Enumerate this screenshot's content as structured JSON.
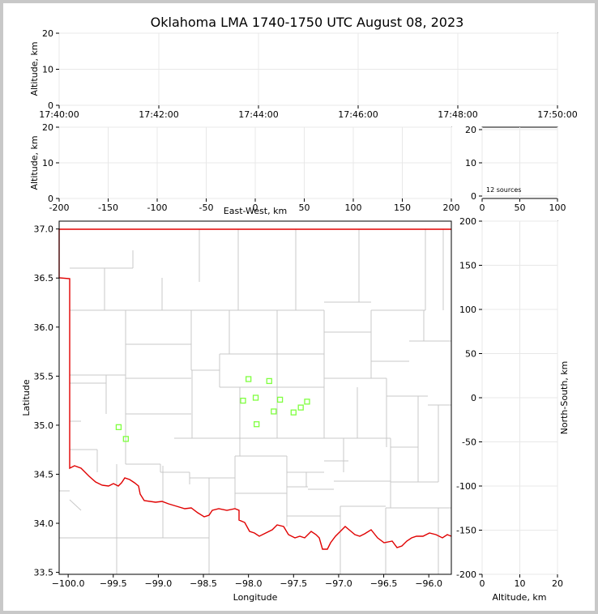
{
  "title": "Oklahoma LMA 1740-1750 UTC August 08, 2023",
  "colors": {
    "state_border": "#e00000",
    "county_line": "#c8c8c8",
    "source_marker": "#7fff3f",
    "grid": "#e8e8e8"
  },
  "chart_data": [
    {
      "type": "scatter",
      "name": "time-altitude",
      "xlabel": "",
      "ylabel": "Altitude, km",
      "xticks": [
        "17:40:00",
        "17:42:00",
        "17:44:00",
        "17:46:00",
        "17:48:00",
        "17:50:00"
      ],
      "xlim_minutes": [
        0,
        10
      ],
      "ylim": [
        0,
        20
      ],
      "yticks": [
        0,
        10,
        20
      ],
      "points": []
    },
    {
      "type": "scatter",
      "name": "east-west-altitude",
      "xlabel": "East-West, km",
      "ylabel": "Altitude, km",
      "xlim": [
        -200,
        200
      ],
      "xticks": [
        -200,
        -150,
        -100,
        -50,
        0,
        50,
        100,
        150,
        200
      ],
      "ylim": [
        0,
        20
      ],
      "yticks": [
        0,
        10,
        20
      ],
      "points": []
    },
    {
      "type": "bar",
      "name": "altitude-histogram",
      "xlim": [
        0,
        100
      ],
      "xticks": [
        0,
        50,
        100
      ],
      "ylim": [
        0,
        20
      ],
      "yticks": [
        0,
        10,
        20
      ],
      "annotation": "12 sources"
    },
    {
      "type": "scatter",
      "name": "plan-view",
      "xlabel": "Longitude",
      "ylabel": "Latitude",
      "xlim": [
        -100.1,
        -95.75
      ],
      "ylim": [
        33.48,
        37.08
      ],
      "xticks": [
        -100.0,
        -99.5,
        -99.0,
        -98.5,
        -98.0,
        -97.5,
        -97.0,
        -96.5,
        -96.0
      ],
      "xtick_labels": [
        "−100.0",
        "−99.5",
        "−99.0",
        "−98.5",
        "−98.0",
        "−97.5",
        "−97.0",
        "−96.5",
        "−96.0"
      ],
      "yticks": [
        33.5,
        34.0,
        34.5,
        35.0,
        35.5,
        36.0,
        36.5,
        37.0
      ],
      "ytick_labels": [
        "33.5",
        "34.0",
        "34.5",
        "35.0",
        "35.5",
        "36.0",
        "36.5",
        "37.0"
      ],
      "sources": [
        {
          "lon": -98.0,
          "lat": 35.47
        },
        {
          "lon": -97.77,
          "lat": 35.45
        },
        {
          "lon": -98.06,
          "lat": 35.25
        },
        {
          "lon": -97.92,
          "lat": 35.28
        },
        {
          "lon": -97.65,
          "lat": 35.26
        },
        {
          "lon": -97.35,
          "lat": 35.24
        },
        {
          "lon": -97.42,
          "lat": 35.18
        },
        {
          "lon": -97.72,
          "lat": 35.14
        },
        {
          "lon": -97.5,
          "lat": 35.13
        },
        {
          "lon": -97.91,
          "lat": 35.01
        },
        {
          "lon": -99.44,
          "lat": 34.98
        },
        {
          "lon": -99.36,
          "lat": 34.86
        }
      ]
    },
    {
      "type": "scatter",
      "name": "altitude-north-south",
      "xlabel": "Altitude, km",
      "ylabel": "North-South, km",
      "xlim": [
        0,
        20
      ],
      "xticks": [
        0,
        10,
        20
      ],
      "ylim": [
        -200,
        200
      ],
      "yticks": [
        -200,
        -150,
        -100,
        -50,
        0,
        50,
        100,
        150,
        200
      ],
      "points": []
    }
  ]
}
